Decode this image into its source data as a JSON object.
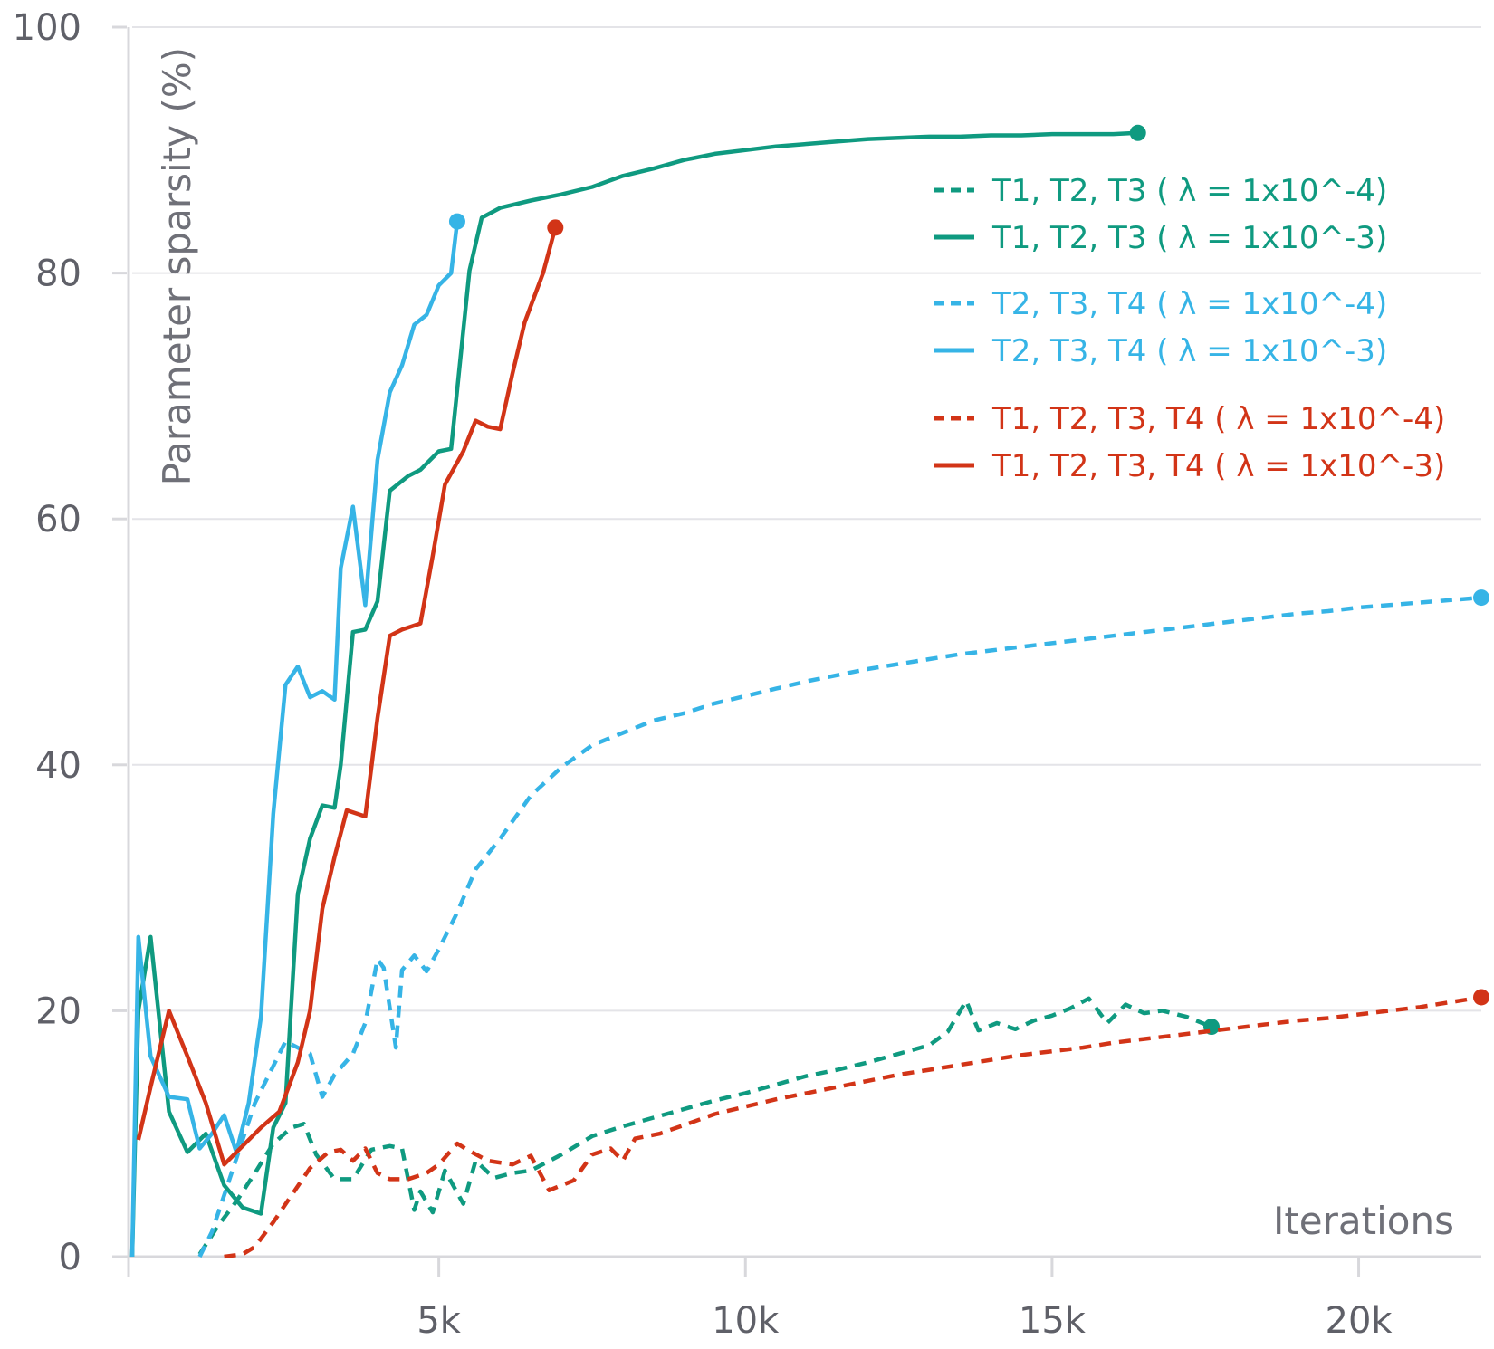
{
  "chart_data": {
    "type": "line",
    "xlabel": "Iterations",
    "ylabel": "Parameter sparsity (%)",
    "xlim": [
      0,
      22000
    ],
    "ylim": [
      0,
      100
    ],
    "x_ticks": [
      5000,
      10000,
      15000,
      20000
    ],
    "x_tick_labels": [
      "5k",
      "10k",
      "15k",
      "20k"
    ],
    "y_ticks": [
      0,
      20,
      40,
      60,
      80,
      100
    ],
    "y_tick_labels": [
      "0",
      "20",
      "40",
      "60",
      "80",
      "100"
    ],
    "grid": "horizontal",
    "legend_position": "top-right",
    "series": [
      {
        "name": "T1, T2, T3 ( λ = 1x10^-4)",
        "color": "#0f9a80",
        "dash": "dashed",
        "x": [
          1100,
          1400,
          1700,
          2000,
          2300,
          2600,
          2800,
          3000,
          3300,
          3600,
          3900,
          4200,
          4400,
          4600,
          4700,
          4900,
          5100,
          5400,
          5600,
          5900,
          6200,
          6500,
          7000,
          7500,
          8000,
          8500,
          9000,
          9500,
          10000,
          10500,
          11000,
          11500,
          12000,
          12500,
          13000,
          13300,
          13600,
          13800,
          14100,
          14400,
          14700,
          15000,
          15300,
          15600,
          15900,
          16200,
          16500,
          16800,
          17200,
          17600
        ],
        "y": [
          0.2,
          2.5,
          4.5,
          6.8,
          9.2,
          10.5,
          10.8,
          8.3,
          6.3,
          6.3,
          8.7,
          9.0,
          8.8,
          3.8,
          5.3,
          3.6,
          7.0,
          4.3,
          7.8,
          6.4,
          6.8,
          7.0,
          8.3,
          9.8,
          10.6,
          11.3,
          12.0,
          12.7,
          13.3,
          14.0,
          14.7,
          15.2,
          15.8,
          16.5,
          17.2,
          18.3,
          20.8,
          18.4,
          19.0,
          18.5,
          19.2,
          19.6,
          20.2,
          21.0,
          19.0,
          20.5,
          19.8,
          20.0,
          19.5,
          18.7
        ]
      },
      {
        "name": "T1, T2, T3 ( λ = 1x10^-3)",
        "color": "#0f9a80",
        "dash": "solid",
        "x": [
          0,
          100,
          300,
          600,
          900,
          1200,
          1500,
          1800,
          2100,
          2300,
          2500,
          2700,
          2900,
          3100,
          3300,
          3400,
          3600,
          3800,
          4000,
          4200,
          4500,
          4700,
          5000,
          5200,
          5500,
          5700,
          6000,
          6500,
          7000,
          7500,
          8000,
          8500,
          9000,
          9500,
          10000,
          10500,
          11000,
          11500,
          12000,
          12500,
          13000,
          13500,
          14000,
          14500,
          15000,
          15500,
          16000,
          16400
        ],
        "y": [
          0,
          20,
          26,
          11.8,
          8.5,
          10.0,
          5.8,
          4.0,
          3.5,
          10.5,
          12.5,
          29.5,
          34.0,
          36.7,
          36.5,
          40.0,
          50.8,
          51.0,
          53.3,
          62.3,
          63.5,
          64.0,
          65.5,
          65.7,
          80.2,
          84.5,
          85.3,
          85.9,
          86.4,
          87.0,
          87.9,
          88.5,
          89.2,
          89.7,
          90.0,
          90.3,
          90.5,
          90.7,
          90.9,
          91.0,
          91.1,
          91.1,
          91.2,
          91.2,
          91.3,
          91.3,
          91.3,
          91.4
        ]
      },
      {
        "name": "T2, T3, T4 ( λ = 1x10^-4)",
        "color": "#36b4e6",
        "dash": "dashed",
        "x": [
          1100,
          1300,
          1500,
          1800,
          2000,
          2300,
          2500,
          2700,
          2900,
          3100,
          3300,
          3600,
          3800,
          4000,
          4100,
          4300,
          4400,
          4600,
          4800,
          5000,
          5300,
          5600,
          6000,
          6500,
          7000,
          7500,
          8000,
          8500,
          9000,
          9500,
          10000,
          10500,
          11000,
          11500,
          12000,
          12500,
          13000,
          13500,
          14000,
          14500,
          15000,
          15500,
          16000,
          16500,
          17000,
          17500,
          18000,
          18500,
          19000,
          19500,
          20000,
          20500,
          21000,
          21500,
          22000
        ],
        "y": [
          0,
          2.0,
          5.0,
          9.5,
          12.5,
          15.5,
          17.5,
          17.0,
          16.5,
          13.0,
          14.8,
          16.5,
          19.0,
          24.2,
          23.5,
          17.0,
          23.3,
          24.5,
          23.2,
          25.0,
          28.0,
          31.5,
          34.0,
          37.5,
          39.8,
          41.6,
          42.6,
          43.6,
          44.2,
          45.0,
          45.6,
          46.2,
          46.8,
          47.3,
          47.8,
          48.2,
          48.6,
          49.0,
          49.3,
          49.6,
          49.9,
          50.2,
          50.5,
          50.8,
          51.1,
          51.4,
          51.7,
          52.0,
          52.3,
          52.5,
          52.8,
          53.0,
          53.2,
          53.4,
          53.6
        ]
      },
      {
        "name": "T2, T3, T4 ( λ = 1x10^-3)",
        "color": "#36b4e6",
        "dash": "solid",
        "x": [
          0,
          100,
          300,
          600,
          900,
          1100,
          1300,
          1500,
          1700,
          1900,
          2100,
          2300,
          2500,
          2700,
          2900,
          3100,
          3300,
          3400,
          3600,
          3800,
          4000,
          4200,
          4400,
          4600,
          4800,
          5000,
          5200,
          5300
        ],
        "y": [
          0,
          26,
          16.3,
          13.0,
          12.8,
          8.8,
          10.0,
          11.5,
          8.5,
          12.5,
          19.5,
          36.0,
          46.5,
          48.0,
          45.5,
          46.0,
          45.3,
          56.0,
          61.0,
          53.0,
          64.8,
          70.3,
          72.5,
          75.8,
          76.6,
          79.0,
          80.0,
          84.2
        ]
      },
      {
        "name": "T1, T2, T3, T4 ( λ = 1x10^-4)",
        "color": "#d23417",
        "dash": "dashed",
        "x": [
          1500,
          1800,
          2000,
          2300,
          2600,
          2900,
          3200,
          3400,
          3600,
          3800,
          4000,
          4200,
          4500,
          4800,
          5000,
          5300,
          5500,
          5800,
          6200,
          6500,
          6800,
          7200,
          7500,
          7800,
          8000,
          8200,
          8600,
          9000,
          9500,
          10000,
          10500,
          11000,
          11500,
          12000,
          12500,
          13000,
          13500,
          14000,
          14500,
          15000,
          15500,
          16000,
          16500,
          17000,
          17500,
          18000,
          18500,
          19000,
          19500,
          20000,
          20500,
          21000,
          21500,
          22000
        ],
        "y": [
          0,
          0.2,
          0.8,
          2.8,
          5.0,
          7.2,
          8.5,
          8.7,
          7.8,
          8.8,
          6.8,
          6.3,
          6.3,
          6.8,
          7.5,
          9.2,
          8.6,
          7.8,
          7.5,
          8.2,
          5.4,
          6.2,
          8.3,
          8.8,
          7.8,
          9.6,
          10.0,
          10.7,
          11.6,
          12.2,
          12.8,
          13.3,
          13.8,
          14.3,
          14.8,
          15.2,
          15.6,
          16.0,
          16.4,
          16.7,
          17.0,
          17.4,
          17.7,
          18.0,
          18.3,
          18.6,
          18.9,
          19.2,
          19.4,
          19.7,
          20.0,
          20.3,
          20.7,
          21.1
        ]
      },
      {
        "name": "T1, T2, T3, T4 ( λ = 1x10^-3)",
        "color": "#d23417",
        "dash": "solid",
        "x": [
          100,
          300,
          600,
          900,
          1200,
          1500,
          1800,
          2100,
          2400,
          2700,
          2900,
          3100,
          3300,
          3500,
          3800,
          4000,
          4200,
          4400,
          4700,
          4900,
          5100,
          5400,
          5600,
          5800,
          6000,
          6200,
          6400,
          6700,
          6900
        ],
        "y": [
          9.5,
          13.8,
          20.0,
          16.3,
          12.5,
          7.5,
          9.0,
          10.5,
          11.8,
          15.8,
          20.0,
          28.3,
          32.5,
          36.3,
          35.8,
          43.8,
          50.5,
          51.0,
          51.5,
          57.0,
          62.8,
          65.5,
          68.0,
          67.5,
          67.3,
          71.8,
          76.0,
          80.0,
          83.7
        ]
      }
    ]
  }
}
